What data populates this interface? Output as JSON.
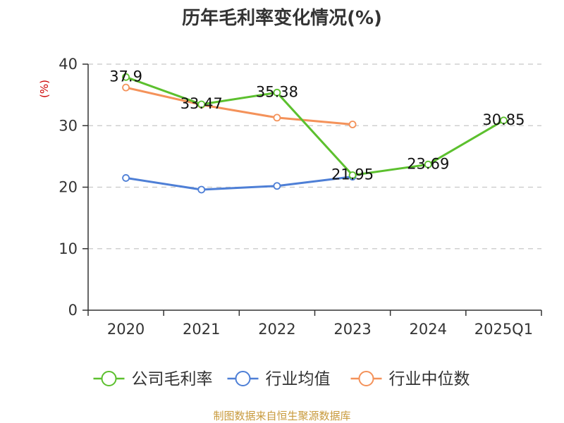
{
  "chart_data": {
    "type": "line",
    "title": "历年毛利率变化情况(%)",
    "ylabel": "(%)",
    "categories": [
      "2020",
      "2021",
      "2022",
      "2023",
      "2024",
      "2025Q1"
    ],
    "ylim": [
      0,
      40
    ],
    "yticks": [
      "0",
      "10",
      "20",
      "30",
      "40"
    ],
    "ytick_values": [
      0,
      10,
      20,
      30,
      40
    ],
    "grid": true,
    "legend_position": "bottom",
    "series": [
      {
        "name": "公司毛利率",
        "color": "#5cc02e",
        "values": [
          37.9,
          33.47,
          35.38,
          21.95,
          23.69,
          30.85
        ],
        "labels": [
          "37.9",
          "33.47",
          "35.38",
          "21.95",
          "23.69",
          "30.85"
        ]
      },
      {
        "name": "行业均值",
        "color": "#4e7fd6",
        "values": [
          21.5,
          19.6,
          20.2,
          21.7,
          null,
          null
        ]
      },
      {
        "name": "行业中位数",
        "color": "#f4925a",
        "values": [
          36.2,
          33.4,
          31.3,
          30.2,
          null,
          null
        ]
      }
    ]
  },
  "source": "制图数据来自恒生聚源数据库"
}
